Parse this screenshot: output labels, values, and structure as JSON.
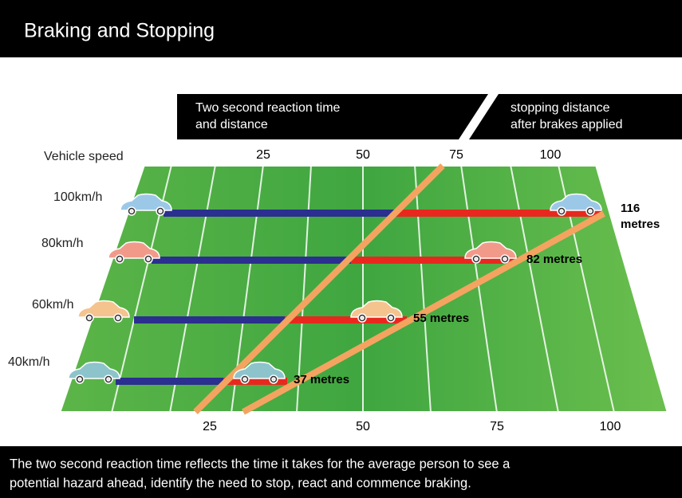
{
  "header": {
    "title": "Braking and Stopping"
  },
  "legend": {
    "reaction": [
      "Two second reaction time",
      "and distance"
    ],
    "braking": [
      "stopping distance",
      "after brakes applied"
    ]
  },
  "axis_label": "Vehicle speed",
  "top_ticks": [
    "25",
    "50",
    "75",
    "100"
  ],
  "bottom_ticks": [
    "25",
    "50",
    "75",
    "100"
  ],
  "rows": [
    {
      "speed": "100km/h",
      "distance": [
        "116",
        "metres"
      ]
    },
    {
      "speed": "80km/h",
      "distance": [
        "82 metres"
      ]
    },
    {
      "speed": "60km/h",
      "distance": [
        "55 metres"
      ]
    },
    {
      "speed": "40km/h",
      "distance": [
        "37 metres"
      ]
    }
  ],
  "footer": [
    "The two second reaction time reflects the time it takes for the average person to see a",
    "potential hazard ahead, identify the need to stop, react and commence braking."
  ]
}
